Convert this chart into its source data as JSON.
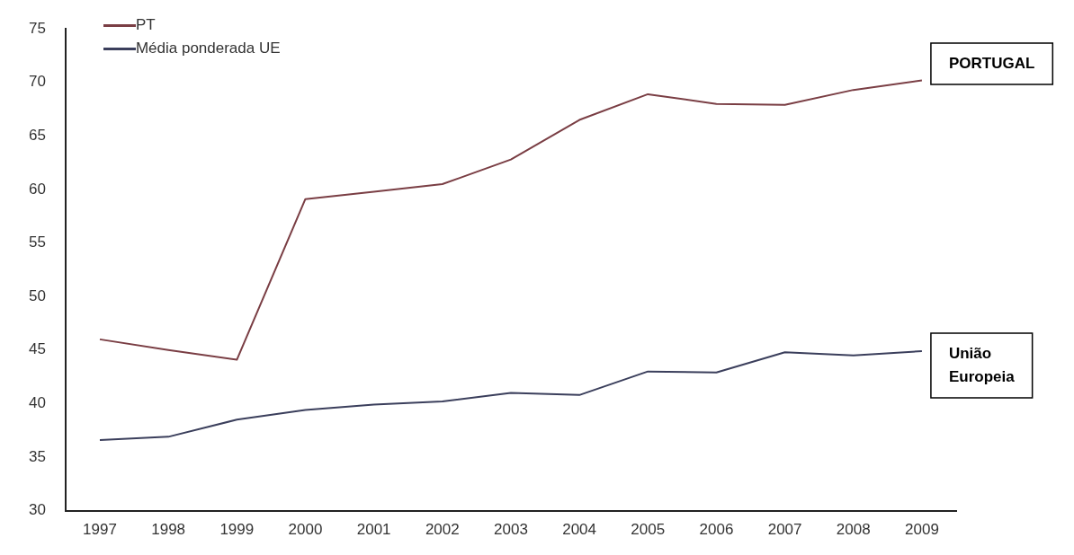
{
  "chart_data": {
    "type": "line",
    "categories": [
      "1997",
      "1998",
      "1999",
      "2000",
      "2001",
      "2002",
      "2003",
      "2004",
      "2005",
      "2006",
      "2007",
      "2008",
      "2009"
    ],
    "series": [
      {
        "name": "PT",
        "color": "#7a3e44",
        "values": [
          46.0,
          45.0,
          44.1,
          59.1,
          59.8,
          60.5,
          62.8,
          66.5,
          68.9,
          68.0,
          67.9,
          69.3,
          70.2
        ]
      },
      {
        "name": "Média ponderada UE",
        "color": "#3b3f5c",
        "values": [
          36.6,
          36.9,
          38.5,
          39.4,
          39.9,
          40.2,
          41.0,
          40.8,
          43.0,
          42.9,
          44.8,
          44.5,
          44.9
        ]
      }
    ],
    "ylim": [
      30,
      75
    ],
    "yticks": [
      30,
      35,
      40,
      45,
      50,
      55,
      60,
      65,
      70,
      75
    ],
    "grid": false,
    "legend": "top left",
    "marker": "none",
    "line_style": "solid",
    "annotations": [
      {
        "text": "PORTUGAL",
        "x": "2009",
        "y": 70.2
      },
      {
        "text": "União Europeia",
        "x": "2009",
        "y": 44.9
      }
    ]
  }
}
